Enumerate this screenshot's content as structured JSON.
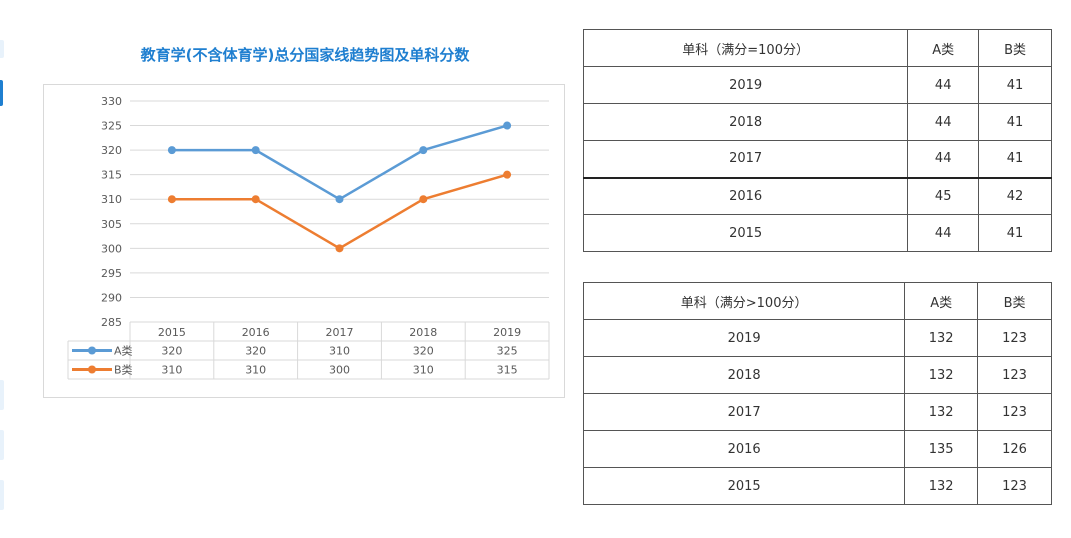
{
  "page": {
    "chart_title": "教育学(不含体育学)总分国家线趋势图及单科分数"
  },
  "colors": {
    "title": "#1f7fd0",
    "series_a": "#5b9bd5",
    "series_b": "#ed7d31",
    "grid": "#d9d9d9"
  },
  "chart_data": {
    "type": "line",
    "title": "教育学(不含体育学)总分国家线趋势图及单科分数",
    "categories": [
      "2015",
      "2016",
      "2017",
      "2018",
      "2019"
    ],
    "series": [
      {
        "name": "A类",
        "values": [
          320,
          320,
          310,
          320,
          325
        ],
        "color": "#5b9bd5"
      },
      {
        "name": "B类",
        "values": [
          310,
          310,
          300,
          310,
          315
        ],
        "color": "#ed7d31"
      }
    ],
    "ylim": [
      285,
      330
    ],
    "yticks": [
      "330",
      "325",
      "320",
      "315",
      "310",
      "305",
      "300",
      "295",
      "290",
      "285"
    ],
    "grid": true,
    "legend": "data-table-below"
  },
  "table_under_100": {
    "headers": [
      "单科（满分=100分）",
      "A类",
      "B类"
    ],
    "rows": [
      [
        "2019",
        "44",
        "41"
      ],
      [
        "2018",
        "44",
        "41"
      ],
      [
        "2017",
        "44",
        "41"
      ],
      [
        "2016",
        "45",
        "42"
      ],
      [
        "2015",
        "44",
        "41"
      ]
    ]
  },
  "table_over_100": {
    "headers": [
      "单科（满分>100分）",
      "A类",
      "B类"
    ],
    "rows": [
      [
        "2019",
        "132",
        "123"
      ],
      [
        "2018",
        "132",
        "123"
      ],
      [
        "2017",
        "132",
        "123"
      ],
      [
        "2016",
        "135",
        "126"
      ],
      [
        "2015",
        "132",
        "123"
      ]
    ]
  }
}
